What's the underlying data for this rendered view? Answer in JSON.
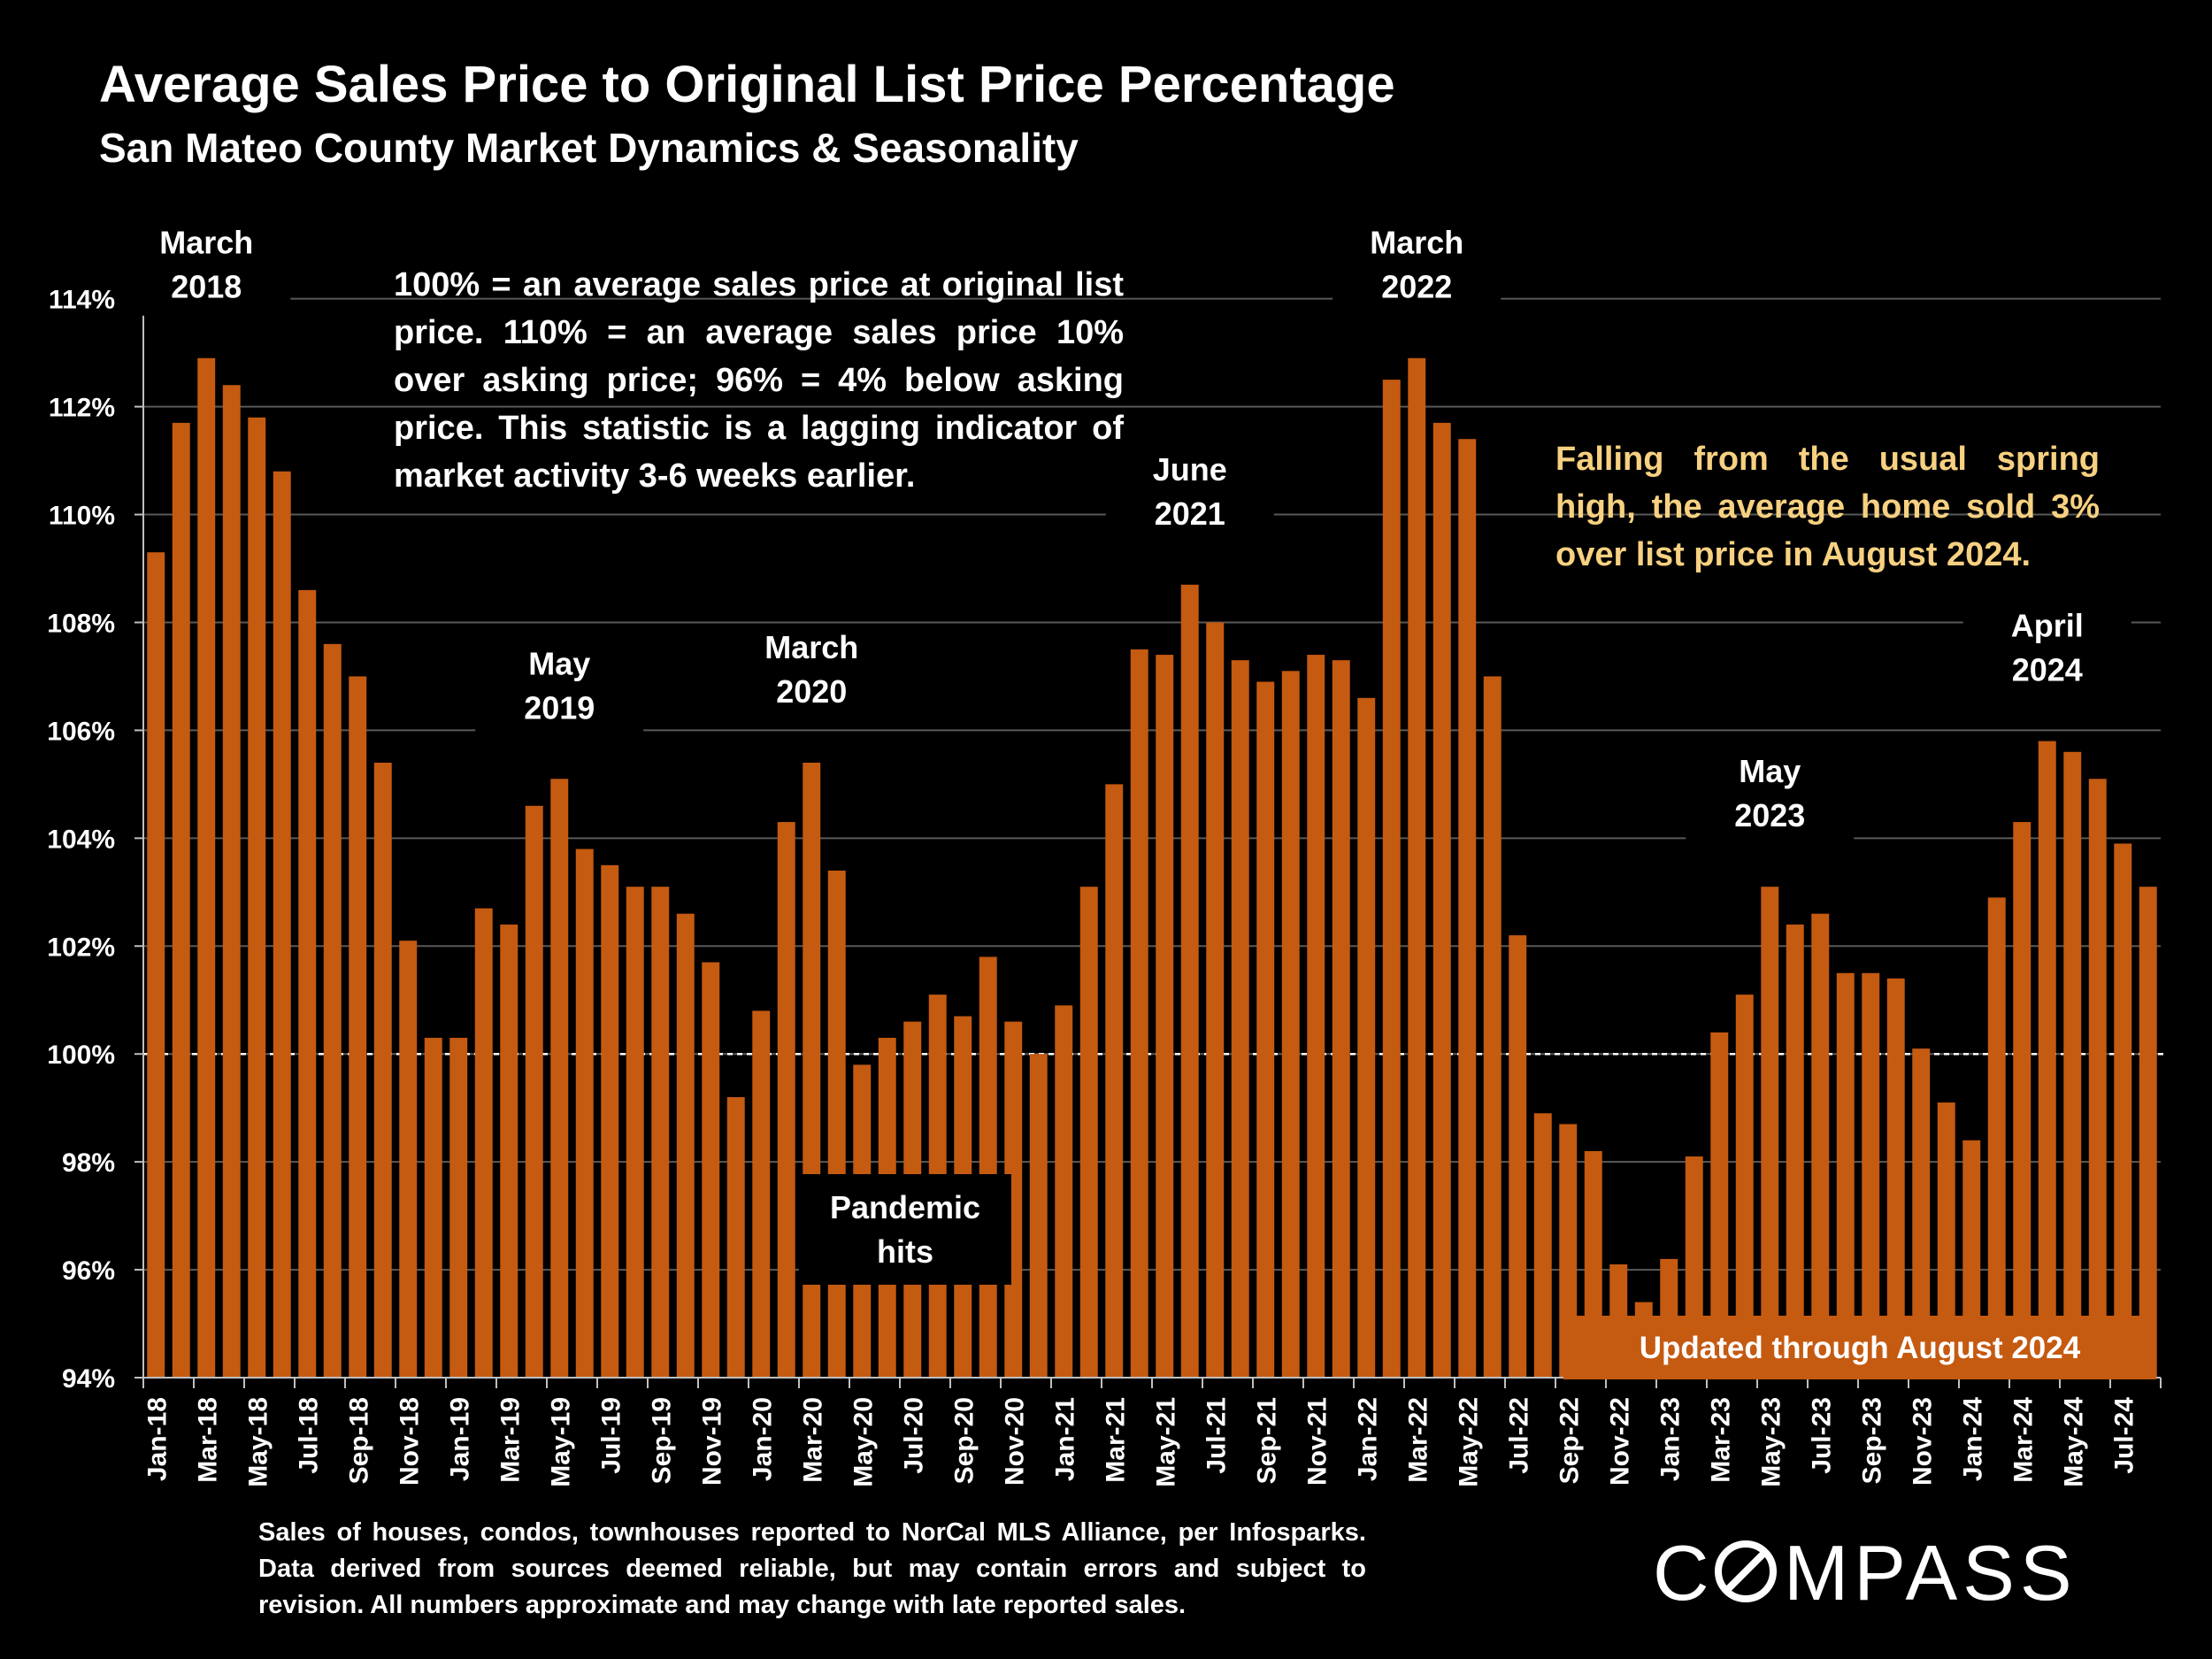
{
  "title": "Average Sales Price to Original List Price Percentage",
  "subtitle": "San Mateo County Market Dynamics & Seasonality",
  "notes": {
    "definition": "100% = an average sales price at original list price. 110% = an average sales price 10% over asking price; 96% = 4% below asking price. This statistic is a lagging indicator of market activity 3-6 weeks earlier.",
    "callout": "Falling from the usual spring high, the average home sold 3% over list price in August 2024.",
    "updated": "Updated through August 2024",
    "footnote": "Sales of houses, condos, townhouses reported to NorCal MLS Alliance, per Infosparks. Data derived from sources deemed reliable, but may contain errors and subject to revision. All numbers approximate and may change with late reported sales."
  },
  "brand": {
    "logo": "COMPASS",
    "logo_icon": "compass-o-icon"
  },
  "colors": {
    "bar": "#c55a11",
    "background": "#000000",
    "callout_text": "#f7d181",
    "grid": "#595959"
  },
  "chart_data": {
    "type": "bar",
    "ylim": [
      94,
      114.7
    ],
    "yticks": [
      94,
      96,
      98,
      100,
      102,
      104,
      106,
      108,
      110,
      112,
      114
    ],
    "ytick_labels": [
      "94%",
      "96%",
      "98%",
      "100%",
      "102%",
      "104%",
      "106%",
      "108%",
      "110%",
      "112%",
      "114%"
    ],
    "reference_line": 100,
    "grid": true,
    "legend": "none",
    "x_tick_labels": [
      "Jan-18",
      "Mar-18",
      "May-18",
      "Jul-18",
      "Sep-18",
      "Nov-18",
      "Jan-19",
      "Mar-19",
      "May-19",
      "Jul-19",
      "Sep-19",
      "Nov-19",
      "Jan-20",
      "Mar-20",
      "May-20",
      "Jul-20",
      "Sep-20",
      "Nov-20",
      "Jan-21",
      "Mar-21",
      "May-21",
      "Jul-21",
      "Sep-21",
      "Nov-21",
      "Jan-22",
      "Mar-22",
      "May-22",
      "Jul-22",
      "Sep-22",
      "Nov-22",
      "Jan-23",
      "Mar-23",
      "May-23",
      "Jul-23",
      "Sep-23",
      "Nov-23",
      "Jan-24",
      "Mar-24",
      "May-24",
      "Jul-24"
    ],
    "values": [
      109.3,
      111.7,
      112.9,
      112.4,
      111.8,
      110.8,
      108.6,
      107.6,
      107.0,
      105.4,
      102.1,
      100.3,
      100.3,
      102.7,
      102.4,
      104.6,
      105.1,
      103.8,
      103.5,
      103.1,
      103.1,
      102.6,
      101.7,
      99.2,
      100.8,
      104.3,
      105.4,
      103.4,
      99.8,
      100.3,
      100.6,
      101.1,
      100.7,
      101.8,
      100.6,
      100.0,
      100.9,
      103.1,
      105.0,
      107.5,
      107.4,
      108.7,
      108.0,
      107.3,
      106.9,
      107.1,
      107.4,
      107.3,
      106.6,
      112.5,
      112.9,
      111.7,
      111.4,
      107.0,
      102.2,
      98.9,
      98.7,
      98.2,
      96.1,
      95.4,
      96.2,
      98.1,
      100.4,
      101.1,
      103.1,
      102.4,
      102.6,
      101.5,
      101.5,
      101.4,
      100.1,
      99.1,
      98.4,
      102.9,
      104.3,
      105.8,
      105.6,
      105.1,
      103.9,
      103.1
    ],
    "annotations": [
      {
        "lines": [
          "March",
          "2018"
        ],
        "index": 2
      },
      {
        "lines": [
          "May",
          "2019"
        ],
        "index": 16
      },
      {
        "lines": [
          "March",
          "2020"
        ],
        "index": 26
      },
      {
        "lines": [
          "June",
          "2021"
        ],
        "index": 41
      },
      {
        "lines": [
          "March",
          "2022"
        ],
        "index": 50
      },
      {
        "lines": [
          "May",
          "2023"
        ],
        "index": 64
      },
      {
        "lines": [
          "April",
          "2024"
        ],
        "index": 75
      }
    ],
    "pandemic_label": [
      "Pandemic",
      "hits"
    ]
  }
}
